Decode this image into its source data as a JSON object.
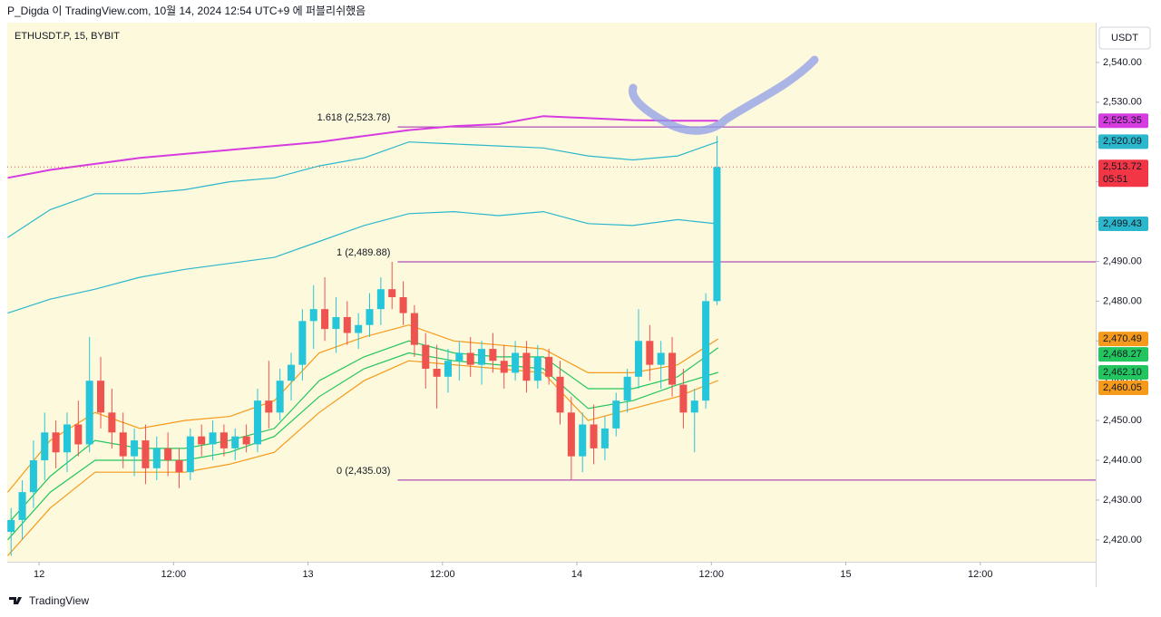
{
  "header": {
    "publisher": "P_Digda 이 TradingView.com, 10월 14, 2024 12:54 UTC+9 에 퍼블리쉬했음"
  },
  "footer": {
    "brand": "TradingView"
  },
  "chart_data": {
    "type": "candlestick",
    "title": "ETHUSDT.P, 15, BYBIT",
    "y_unit": "USDT",
    "up_color": "#26c6da",
    "down_color": "#ef5350",
    "xlim": [
      -2.84,
      94.3
    ],
    "xticks": [
      {
        "value": 0,
        "label": "12"
      },
      {
        "value": 12,
        "label": "12:00"
      },
      {
        "value": 24,
        "label": "13"
      },
      {
        "value": 36,
        "label": "12:00"
      },
      {
        "value": 48,
        "label": "14"
      },
      {
        "value": 60,
        "label": "12:00"
      },
      {
        "value": 72,
        "label": "15"
      },
      {
        "value": 84,
        "label": "12:00"
      }
    ],
    "ylim": [
      2414.5,
      2550
    ],
    "yticks": [
      {
        "value": 2420,
        "label": "2,420.00"
      },
      {
        "value": 2430,
        "label": "2,430.00"
      },
      {
        "value": 2440,
        "label": "2,440.00"
      },
      {
        "value": 2450,
        "label": "2,450.00"
      },
      {
        "value": 2460,
        "label": "2,460.00"
      },
      {
        "value": 2470,
        "label": "2,470.00"
      },
      {
        "value": 2480,
        "label": "2,480.00"
      },
      {
        "value": 2490,
        "label": "2,490.00"
      },
      {
        "value": 2500,
        "label": "2,500.00"
      },
      {
        "value": 2510,
        "label": "2,510.00"
      },
      {
        "value": 2520,
        "label": "2,520.00"
      },
      {
        "value": 2530,
        "label": "2,530.00"
      },
      {
        "value": 2540,
        "label": "2,540.00"
      }
    ],
    "x": [
      -2.5,
      -1.5,
      -0.5,
      0.5,
      1.5,
      2.5,
      3.5,
      4.5,
      5.5,
      6.5,
      7.5,
      8.5,
      9.5,
      10.5,
      11.5,
      12.5,
      13.5,
      14.5,
      15.5,
      16.5,
      17.5,
      18.5,
      19.5,
      20.5,
      21.5,
      22.5,
      23.5,
      24.5,
      25.5,
      26.5,
      27.5,
      28.5,
      29.5,
      30.5,
      31.5,
      32.5,
      33.5,
      34.5,
      35.5,
      36.5,
      37.5,
      38.5,
      39.5,
      40.5,
      41.5,
      42.5,
      43.5,
      44.5,
      45.5,
      46.5,
      47.5,
      48.5,
      49.5,
      50.5,
      51.5,
      52.5,
      53.5,
      54.5,
      55.5,
      56.5,
      57.5,
      58.5,
      59.5,
      60.5
    ],
    "open": [
      2422,
      2425,
      2432,
      2440,
      2447,
      2442,
      2449,
      2444,
      2460,
      2452,
      2447,
      2441,
      2445,
      2438,
      2443,
      2440,
      2437,
      2446,
      2444,
      2447,
      2443,
      2446,
      2444,
      2455,
      2452,
      2460,
      2464,
      2475,
      2478,
      2473,
      2476,
      2472,
      2474,
      2478,
      2483,
      2481,
      2477,
      2469,
      2463,
      2461,
      2465,
      2467,
      2464,
      2468,
      2465,
      2462,
      2467,
      2460,
      2466,
      2461,
      2452,
      2441,
      2449,
      2443,
      2448,
      2455,
      2461,
      2470,
      2464,
      2467,
      2459,
      2452,
      2455,
      2480
    ],
    "high": [
      2428,
      2435,
      2445,
      2452,
      2450,
      2452,
      2455,
      2471,
      2466,
      2458,
      2452,
      2448,
      2449,
      2446,
      2447,
      2443,
      2448,
      2449,
      2450,
      2449,
      2448,
      2449,
      2458,
      2465,
      2463,
      2467,
      2478,
      2484,
      2486,
      2481,
      2480,
      2477,
      2482,
      2486,
      2489.88,
      2485,
      2479,
      2472,
      2469,
      2468,
      2470,
      2471,
      2470,
      2472,
      2469,
      2470,
      2470,
      2469,
      2468,
      2465,
      2456,
      2452,
      2454,
      2451,
      2457,
      2463,
      2478,
      2474,
      2470,
      2471,
      2463,
      2458,
      2482,
      2521.5
    ],
    "low": [
      2416,
      2420,
      2428,
      2435,
      2438,
      2437,
      2441,
      2442,
      2448,
      2443,
      2438,
      2436,
      2434,
      2435,
      2436,
      2433,
      2435,
      2441,
      2440,
      2441,
      2440,
      2442,
      2442,
      2448,
      2450,
      2455,
      2460,
      2468,
      2470,
      2467,
      2469,
      2468,
      2471,
      2474,
      2478,
      2474,
      2466,
      2458,
      2453,
      2457,
      2460,
      2461,
      2459,
      2462,
      2458,
      2460,
      2457,
      2458,
      2459,
      2449,
      2435.03,
      2437,
      2439,
      2440,
      2446,
      2452,
      2458,
      2460,
      2458,
      2456,
      2448,
      2442,
      2453,
      2479
    ],
    "close": [
      2425,
      2432,
      2440,
      2447,
      2442,
      2449,
      2444,
      2460,
      2452,
      2447,
      2441,
      2445,
      2438,
      2443,
      2440,
      2437,
      2446,
      2444,
      2447,
      2443,
      2446,
      2444,
      2455,
      2452,
      2460,
      2464,
      2475,
      2478,
      2473,
      2476,
      2472,
      2474,
      2478,
      2483,
      2481,
      2477,
      2469,
      2463,
      2461,
      2465,
      2467,
      2464,
      2468,
      2465,
      2462,
      2467,
      2460,
      2466,
      2461,
      2452,
      2441,
      2449,
      2443,
      2448,
      2455,
      2461,
      2470,
      2464,
      2467,
      2459,
      2452,
      2455,
      2480,
      2513.72
    ],
    "last_label": "2,513.72",
    "countdown": "05:51",
    "overlay_x": [
      -2.8,
      1,
      5,
      9,
      13,
      17,
      21,
      25,
      29,
      33,
      37,
      41,
      45,
      49,
      53,
      57,
      60.6
    ],
    "overlays": [
      {
        "color": "#d63ce0",
        "values": [
          2511,
          2513,
          2514.5,
          2516,
          2517,
          2518,
          2519,
          2520,
          2521.5,
          2523,
          2524,
          2524.5,
          2526.5,
          2526,
          2525.5,
          2525.35,
          2525.35
        ],
        "last_label": "2,525.35"
      },
      {
        "color": "#2bb7cc",
        "values": [
          2496,
          2503,
          2507,
          2507,
          2508,
          2510,
          2511,
          2514,
          2516,
          2520,
          2519.5,
          2519,
          2518.5,
          2516.5,
          2515.5,
          2516.5,
          2520.09
        ],
        "last_label": "2,520.09"
      },
      {
        "color": "#2bb7cc",
        "values": [
          2477,
          2480.5,
          2483,
          2486,
          2488,
          2489.5,
          2491,
          2495,
          2499,
          2502,
          2502.5,
          2501.5,
          2502.5,
          2499.5,
          2499,
          2500.5,
          2499.43
        ],
        "last_label": "2,499.43"
      },
      {
        "color": "#f59a1a",
        "values": [
          2432,
          2445,
          2452,
          2448,
          2450,
          2451,
          2455,
          2467,
          2471,
          2474,
          2470,
          2469,
          2468,
          2462,
          2462,
          2464,
          2470.49
        ],
        "last_label": "2,470.49"
      },
      {
        "color": "#22c55e",
        "values": [
          2424,
          2436,
          2445,
          2443,
          2443,
          2445,
          2448,
          2460,
          2466,
          2470,
          2467,
          2466,
          2466,
          2458,
          2458,
          2461,
          2468.27
        ],
        "last_label": "2,468.27"
      },
      {
        "color": "#22c55e",
        "values": [
          2420,
          2432,
          2440,
          2440,
          2440,
          2442,
          2446,
          2456,
          2463,
          2467,
          2465,
          2464,
          2463,
          2453,
          2455,
          2459,
          2462.1
        ],
        "last_label": "2,462.10"
      },
      {
        "color": "#f59a1a",
        "values": [
          2416,
          2428,
          2437,
          2437,
          2437,
          2439,
          2442,
          2452,
          2460,
          2465,
          2464,
          2463,
          2462,
          2450,
          2453,
          2456,
          2460.05
        ],
        "last_label": "2,460.05"
      }
    ],
    "fib_x0": 32,
    "fib_color": "#9c27b0",
    "fib_levels": [
      {
        "value": 2523.78,
        "label": "1.618 (2,523.78)"
      },
      {
        "value": 2489.88,
        "label": "1 (2,489.88)"
      },
      {
        "value": 2435.03,
        "label": "0 (2,435.03)"
      }
    ]
  }
}
